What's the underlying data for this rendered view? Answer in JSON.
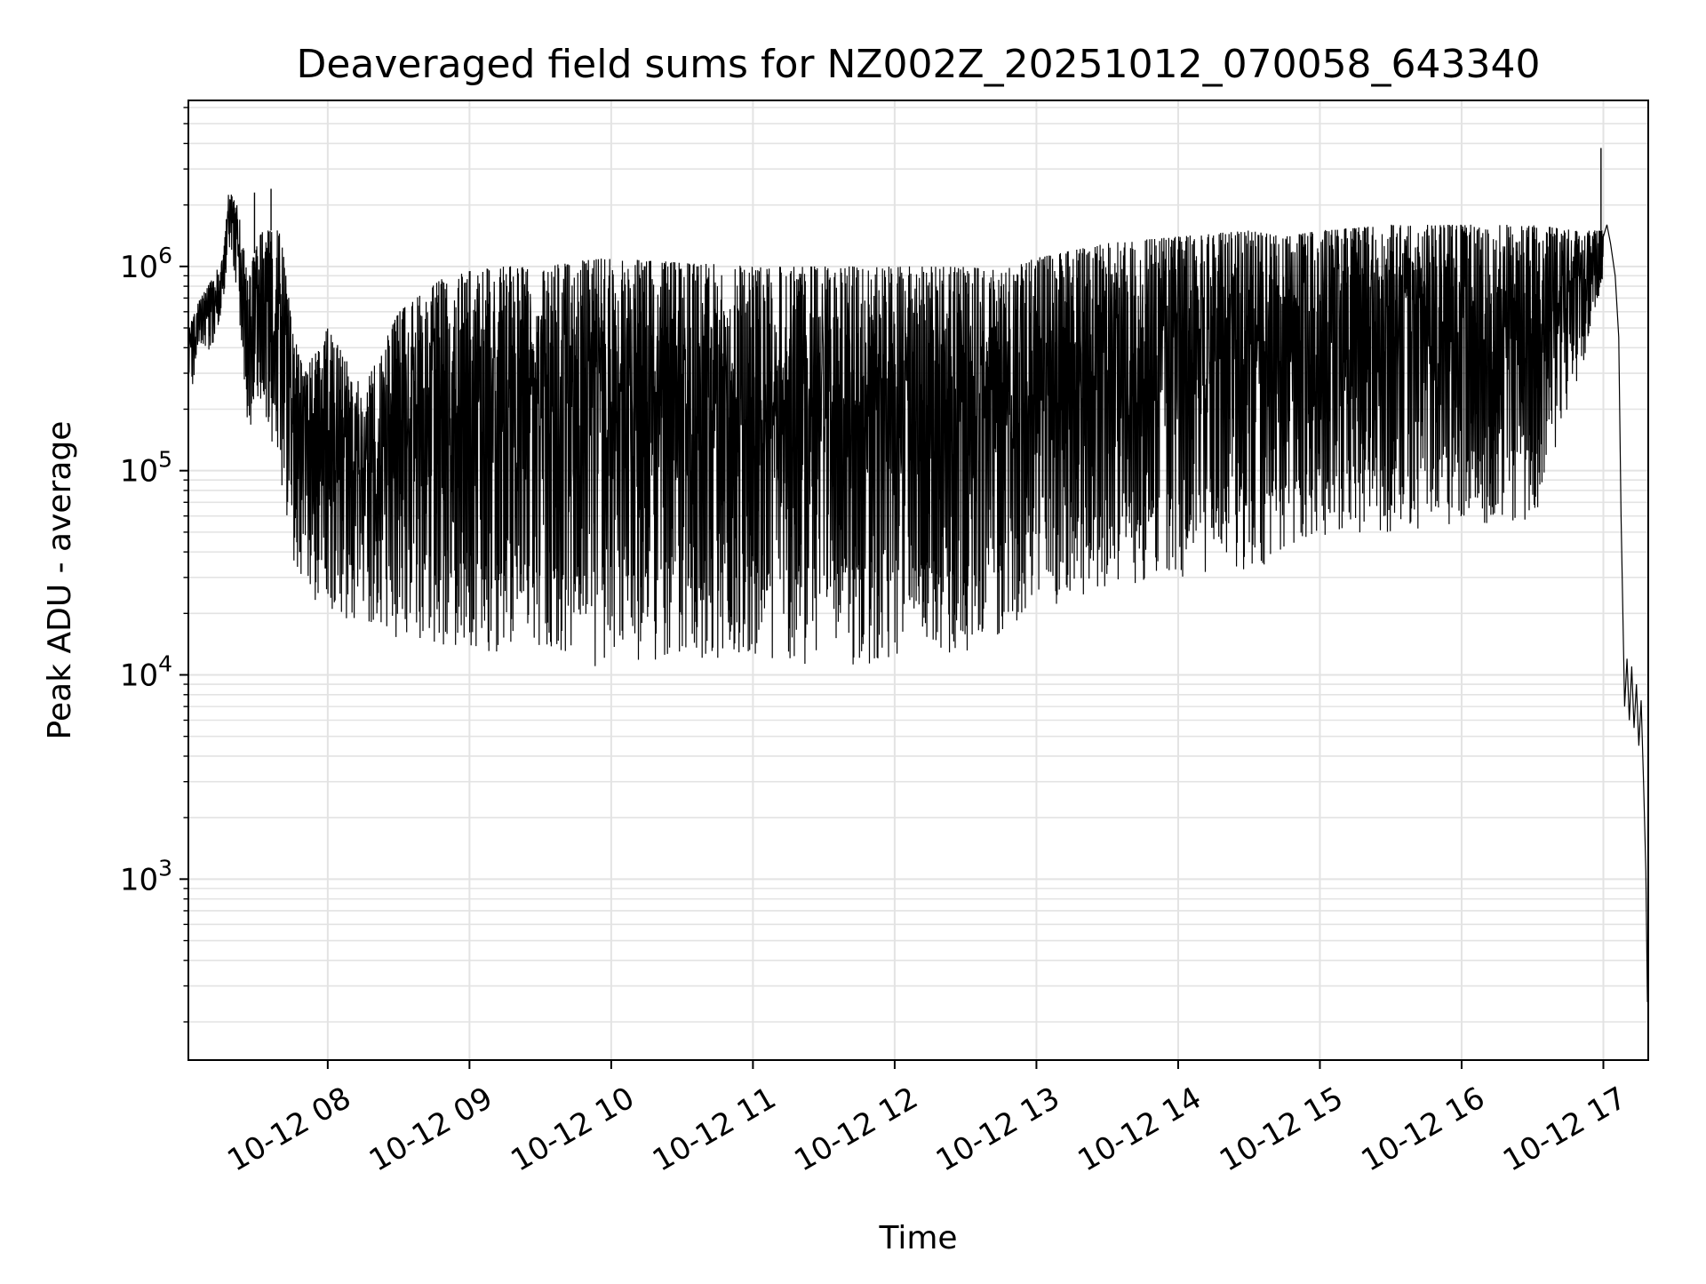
{
  "chart_data": {
    "type": "line",
    "title": "Deaveraged field sums for NZ002Z_20251012_070058_643340",
    "xlabel": "Time",
    "ylabel": "Peak ADU - average",
    "yscale": "log",
    "grid": true,
    "xlim": [
      "2025-10-12 07:01:00",
      "2025-10-12 17:19:00"
    ],
    "ylim": [
      130,
      6500000
    ],
    "x_ticks": [
      {
        "value": "2025-10-12 08:00:00",
        "label": "10-12 08"
      },
      {
        "value": "2025-10-12 09:00:00",
        "label": "10-12 09"
      },
      {
        "value": "2025-10-12 10:00:00",
        "label": "10-12 10"
      },
      {
        "value": "2025-10-12 11:00:00",
        "label": "10-12 11"
      },
      {
        "value": "2025-10-12 12:00:00",
        "label": "10-12 12"
      },
      {
        "value": "2025-10-12 13:00:00",
        "label": "10-12 13"
      },
      {
        "value": "2025-10-12 14:00:00",
        "label": "10-12 14"
      },
      {
        "value": "2025-10-12 15:00:00",
        "label": "10-12 15"
      },
      {
        "value": "2025-10-12 16:00:00",
        "label": "10-12 16"
      },
      {
        "value": "2025-10-12 17:00:00",
        "label": "10-12 17"
      }
    ],
    "y_ticks": [
      {
        "value": 1000,
        "base": "10",
        "exp": "3"
      },
      {
        "value": 10000,
        "base": "10",
        "exp": "4"
      },
      {
        "value": 100000,
        "base": "10",
        "exp": "5"
      },
      {
        "value": 1000000,
        "base": "10",
        "exp": "6"
      }
    ],
    "series": [
      {
        "color": "#000000",
        "envelope": [
          {
            "t": "2025-10-12 07:01:00",
            "high": 500000,
            "low": 200000
          },
          {
            "t": "2025-10-12 07:06:00",
            "high": 700000,
            "low": 400000
          },
          {
            "t": "2025-10-12 07:12:00",
            "high": 900000,
            "low": 380000
          },
          {
            "t": "2025-10-12 07:16:00",
            "high": 1200000,
            "low": 700000
          },
          {
            "t": "2025-10-12 07:18:00",
            "high": 2400000,
            "low": 1300000
          },
          {
            "t": "2025-10-12 07:22:00",
            "high": 2000000,
            "low": 700000
          },
          {
            "t": "2025-10-12 07:26:00",
            "high": 900000,
            "low": 160000
          },
          {
            "t": "2025-10-12 07:32:00",
            "high": 1500000,
            "low": 180000
          },
          {
            "t": "2025-10-12 07:40:00",
            "high": 1500000,
            "low": 90000
          },
          {
            "t": "2025-10-12 07:45:00",
            "high": 500000,
            "low": 35000
          },
          {
            "t": "2025-10-12 07:50:00",
            "high": 300000,
            "low": 25000
          },
          {
            "t": "2025-10-12 08:00:00",
            "high": 500000,
            "low": 20000
          },
          {
            "t": "2025-10-12 08:15:00",
            "high": 250000,
            "low": 18000
          },
          {
            "t": "2025-10-12 08:30:00",
            "high": 600000,
            "low": 15000
          },
          {
            "t": "2025-10-12 08:50:00",
            "high": 900000,
            "low": 14000
          },
          {
            "t": "2025-10-12 09:10:00",
            "high": 1000000,
            "low": 12500
          },
          {
            "t": "2025-10-12 09:30:00",
            "high": 1000000,
            "low": 11500
          },
          {
            "t": "2025-10-12 09:55:00",
            "high": 1100000,
            "low": 10500
          },
          {
            "t": "2025-10-12 10:30:00",
            "high": 1050000,
            "low": 12000
          },
          {
            "t": "2025-10-12 11:00:00",
            "high": 1000000,
            "low": 12000
          },
          {
            "t": "2025-10-12 11:30:00",
            "high": 1000000,
            "low": 11000
          },
          {
            "t": "2025-10-12 12:00:00",
            "high": 1000000,
            "low": 11500
          },
          {
            "t": "2025-10-12 12:30:00",
            "high": 1000000,
            "low": 13000
          },
          {
            "t": "2025-10-12 12:45:00",
            "high": 950000,
            "low": 16000
          },
          {
            "t": "2025-10-12 13:00:00",
            "high": 1100000,
            "low": 20000
          },
          {
            "t": "2025-10-12 13:30:00",
            "high": 1300000,
            "low": 25000
          },
          {
            "t": "2025-10-12 14:00:00",
            "high": 1400000,
            "low": 30000
          },
          {
            "t": "2025-10-12 14:30:00",
            "high": 1500000,
            "low": 33000
          },
          {
            "t": "2025-10-12 14:45:00",
            "high": 1400000,
            "low": 36000
          },
          {
            "t": "2025-10-12 15:00:00",
            "high": 1500000,
            "low": 45000
          },
          {
            "t": "2025-10-12 15:30:00",
            "high": 1600000,
            "low": 50000
          },
          {
            "t": "2025-10-12 16:00:00",
            "high": 1600000,
            "low": 55000
          },
          {
            "t": "2025-10-12 16:30:00",
            "high": 1600000,
            "low": 55000
          },
          {
            "t": "2025-10-12 16:50:00",
            "high": 1500000,
            "low": 270000
          },
          {
            "t": "2025-10-12 17:00:00",
            "high": 1500000,
            "low": 900000
          }
        ],
        "tail": [
          {
            "t": "2025-10-12 17:00:00",
            "y": 1400000
          },
          {
            "t": "2025-10-12 17:01:30",
            "y": 1600000
          },
          {
            "t": "2025-10-12 17:03:00",
            "y": 1300000
          },
          {
            "t": "2025-10-12 17:05:00",
            "y": 900000
          },
          {
            "t": "2025-10-12 17:06:30",
            "y": 450000
          },
          {
            "t": "2025-10-12 17:07:30",
            "y": 60000
          },
          {
            "t": "2025-10-12 17:08:30",
            "y": 14000
          },
          {
            "t": "2025-10-12 17:09:00",
            "y": 7000
          },
          {
            "t": "2025-10-12 17:10:00",
            "y": 12000
          },
          {
            "t": "2025-10-12 17:11:00",
            "y": 6000
          },
          {
            "t": "2025-10-12 17:12:00",
            "y": 11000
          },
          {
            "t": "2025-10-12 17:13:00",
            "y": 5500
          },
          {
            "t": "2025-10-12 17:14:00",
            "y": 9000
          },
          {
            "t": "2025-10-12 17:15:00",
            "y": 4500
          },
          {
            "t": "2025-10-12 17:16:00",
            "y": 7500
          },
          {
            "t": "2025-10-12 17:17:00",
            "y": 3000
          },
          {
            "t": "2025-10-12 17:18:00",
            "y": 1100
          },
          {
            "t": "2025-10-12 17:18:40",
            "y": 250
          }
        ],
        "spikes": [
          {
            "t": "2025-10-12 16:59:00",
            "y": 3800000
          },
          {
            "t": "2025-10-12 07:36:00",
            "y": 2400000
          },
          {
            "t": "2025-10-12 07:29:00",
            "y": 2300000
          }
        ]
      }
    ]
  }
}
